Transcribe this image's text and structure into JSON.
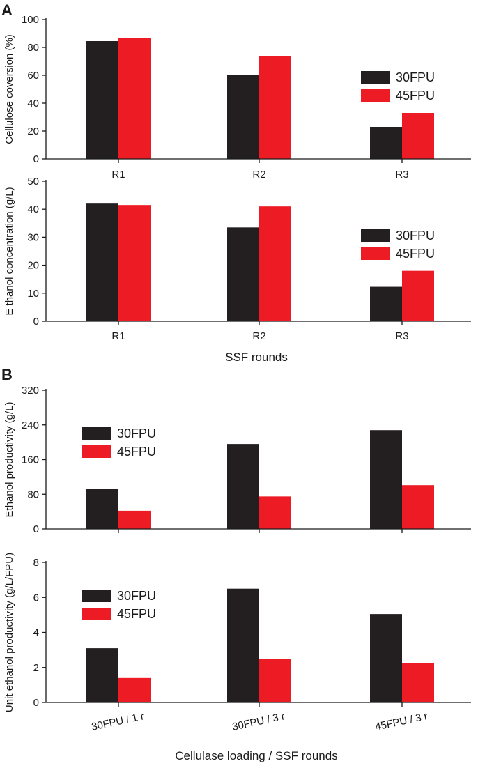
{
  "panels": [
    {
      "letter": "A"
    },
    {
      "letter": "B"
    }
  ],
  "colors": {
    "s30": "#231f20",
    "s45": "#ed1c24"
  },
  "xlabels": {
    "panel_a": "SSF rounds",
    "panel_b": "Cellulase loading / SSF rounds"
  },
  "chart_data": [
    {
      "type": "bar",
      "panel": "A",
      "categories": [
        "R1",
        "R2",
        "R3"
      ],
      "series": [
        {
          "name": "30FPU",
          "values": [
            84.5,
            60,
            23
          ]
        },
        {
          "name": "45FPU",
          "values": [
            86.5,
            74,
            33
          ]
        }
      ],
      "title": "",
      "xlabel": "",
      "ylabel": "Cellulose coversion (%)",
      "ylim": [
        0,
        100
      ],
      "yticks": [
        0,
        20,
        40,
        60,
        80,
        100
      ],
      "legend": "right"
    },
    {
      "type": "bar",
      "panel": "A",
      "categories": [
        "R1",
        "R2",
        "R3"
      ],
      "series": [
        {
          "name": "30FPU",
          "values": [
            42,
            33.5,
            12.3
          ]
        },
        {
          "name": "45FPU",
          "values": [
            41.5,
            41,
            18
          ]
        }
      ],
      "title": "",
      "xlabel": "SSF rounds",
      "ylabel": "E thanol concentration (g/L)",
      "ylim": [
        0,
        50
      ],
      "yticks": [
        0,
        10,
        20,
        30,
        40,
        50
      ],
      "legend": "right"
    },
    {
      "type": "bar",
      "panel": "B",
      "categories": [
        "30FPU / 1 r",
        "30FPU / 3 r",
        "45FPU / 3 r"
      ],
      "series": [
        {
          "name": "30FPU",
          "values": [
            93,
            196,
            228
          ]
        },
        {
          "name": "45FPU",
          "values": [
            42,
            75,
            101
          ]
        }
      ],
      "title": "",
      "xlabel": "",
      "ylabel": "Ethanol  productivity  (g/L)",
      "ylim": [
        0,
        320
      ],
      "yticks": [
        0,
        80,
        160,
        240,
        320
      ],
      "legend": "top-left"
    },
    {
      "type": "bar",
      "panel": "B",
      "categories": [
        "30FPU / 1 r",
        "30FPU / 3 r",
        "45FPU / 3 r"
      ],
      "series": [
        {
          "name": "30FPU",
          "values": [
            3.1,
            6.5,
            5.05
          ]
        },
        {
          "name": "45FPU",
          "values": [
            1.4,
            2.5,
            2.25
          ]
        }
      ],
      "title": "",
      "xlabel": "Cellulase loading / SSF rounds",
      "ylabel": "Unit ethanol  productivity  (g/L/FPU)",
      "ylim": [
        0,
        8
      ],
      "yticks": [
        0,
        2,
        4,
        6,
        8
      ],
      "legend": "top-left"
    }
  ]
}
